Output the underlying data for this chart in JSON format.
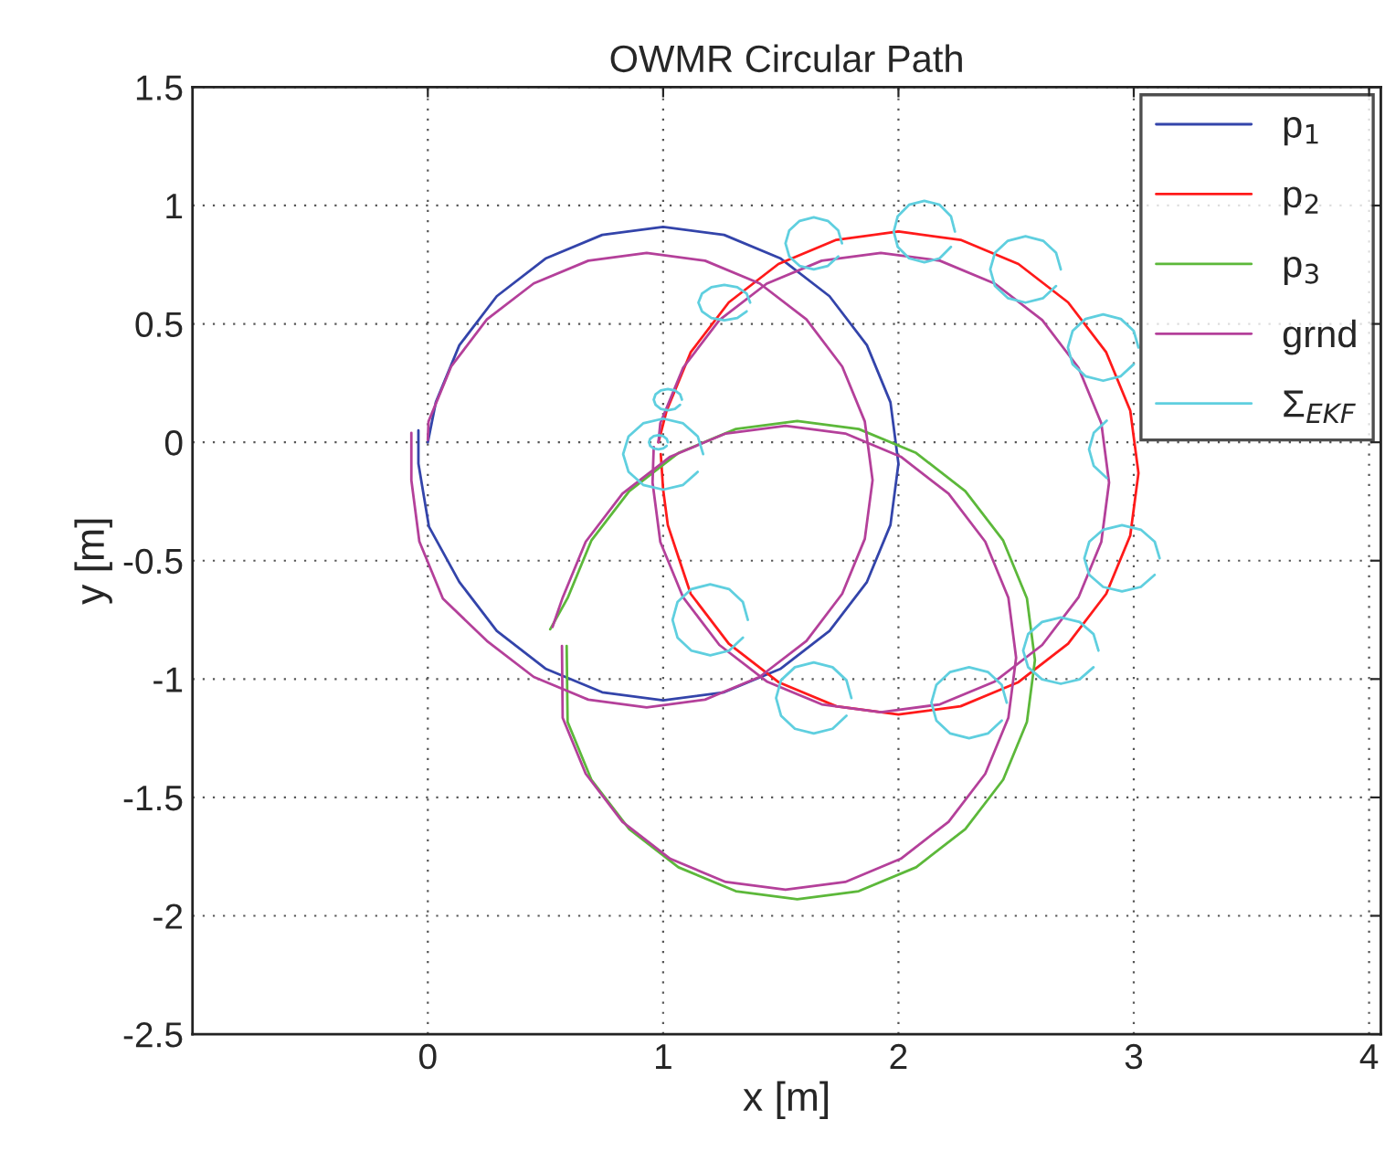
{
  "chart_data": {
    "type": "line",
    "title": "OWMR Circular Path",
    "xlabel": "x [m]",
    "ylabel": "y [m]",
    "xlim": [
      -1,
      4.05
    ],
    "xticks": [
      0,
      1,
      2,
      3,
      4
    ],
    "ylim": [
      -2.5,
      1.5
    ],
    "yticks": [
      -2.5,
      -2,
      -1.5,
      -1,
      -0.5,
      0,
      0.5,
      1,
      1.5
    ],
    "grid": true,
    "legend": "top right",
    "line_style": "solid",
    "marker": "none",
    "series": [
      {
        "name": "p$_{1}$",
        "color": "#3344aa",
        "x": [
          0.0,
          0.034,
          0.134,
          0.293,
          0.5,
          0.741,
          1.0,
          1.259,
          1.5,
          1.707,
          1.866,
          1.966,
          2.0,
          1.966,
          1.866,
          1.707,
          1.5,
          1.259,
          1.0,
          0.741,
          0.5,
          0.293,
          0.134,
          0.005,
          -0.04,
          -0.04
        ],
        "values": [
          0.0,
          0.169,
          0.41,
          0.617,
          0.776,
          0.876,
          0.91,
          0.876,
          0.776,
          0.617,
          0.41,
          0.169,
          -0.09,
          -0.349,
          -0.59,
          -0.797,
          -0.956,
          -1.056,
          -1.09,
          -1.056,
          -0.956,
          -0.797,
          -0.59,
          -0.357,
          -0.09,
          0.05
        ]
      },
      {
        "name": "p$_{2}$",
        "color": "#ff1a1a",
        "x": [
          0.98,
          1.015,
          1.117,
          1.279,
          1.49,
          1.736,
          2.0,
          2.264,
          2.51,
          2.721,
          2.883,
          2.985,
          3.02,
          2.985,
          2.883,
          2.721,
          2.51,
          2.264,
          2.0,
          1.736,
          1.49,
          1.279,
          1.117,
          1.07,
          1.02,
          1.0,
          0.99
        ],
        "values": [
          0.0,
          0.134,
          0.38,
          0.591,
          0.753,
          0.855,
          0.89,
          0.855,
          0.753,
          0.591,
          0.38,
          0.134,
          -0.13,
          -0.394,
          -0.64,
          -0.851,
          -1.013,
          -1.115,
          -1.15,
          -1.115,
          -1.013,
          -0.851,
          -0.64,
          -0.5,
          -0.35,
          -0.2,
          -0.05
        ]
      },
      {
        "name": "p$_{3}$",
        "color": "#5cb83a",
        "x": [
          0.52,
          0.594,
          0.695,
          0.856,
          1.065,
          1.309,
          1.57,
          1.831,
          2.075,
          2.284,
          2.445,
          2.546,
          2.58,
          2.546,
          2.445,
          2.284,
          2.075,
          1.831,
          1.57,
          1.309,
          1.065,
          0.856,
          0.695,
          0.594,
          0.59
        ],
        "values": [
          -0.79,
          -0.658,
          -0.415,
          -0.206,
          -0.045,
          0.056,
          0.09,
          0.056,
          -0.045,
          -0.206,
          -0.415,
          -0.659,
          -0.92,
          -1.181,
          -1.425,
          -1.634,
          -1.795,
          -1.896,
          -1.93,
          -1.896,
          -1.795,
          -1.634,
          -1.425,
          -1.181,
          -0.86
        ]
      },
      {
        "name": "grnd",
        "color": "#b4409a",
        "x": [
          0.0,
          0.003,
          0.099,
          0.251,
          0.45,
          0.682,
          0.93,
          1.178,
          1.41,
          1.609,
          1.761,
          1.857,
          1.89,
          1.857,
          1.761,
          1.609,
          1.41,
          1.178,
          0.93,
          0.682,
          0.45,
          0.251,
          0.064,
          -0.036,
          -0.07,
          -0.07,
          null,
          0.98,
          0.988,
          1.085,
          1.239,
          1.44,
          1.674,
          1.925,
          2.176,
          2.41,
          2.611,
          2.765,
          2.862,
          2.895,
          2.862,
          2.765,
          2.611,
          2.41,
          2.176,
          1.925,
          1.674,
          1.44,
          1.239,
          1.085,
          0.988,
          0.955,
          0.96,
          null,
          0.53,
          0.573,
          0.671,
          0.827,
          1.03,
          1.266,
          1.52,
          1.774,
          2.01,
          2.213,
          2.369,
          2.467,
          2.5,
          2.467,
          2.369,
          2.213,
          2.01,
          1.774,
          1.52,
          1.266,
          1.03,
          0.827,
          0.671,
          0.573,
          0.57
        ],
        "values": [
          0.01,
          0.088,
          0.32,
          0.519,
          0.671,
          0.767,
          0.8,
          0.767,
          0.671,
          0.519,
          0.32,
          0.088,
          -0.16,
          -0.408,
          -0.64,
          -0.839,
          -0.991,
          -1.087,
          -1.12,
          -1.087,
          -0.991,
          -0.839,
          -0.66,
          -0.419,
          -0.16,
          0.04,
          null,
          0.0,
          0.081,
          0.315,
          0.516,
          0.67,
          0.767,
          0.8,
          0.767,
          0.67,
          0.516,
          0.315,
          0.081,
          -0.17,
          -0.421,
          -0.655,
          -0.856,
          -1.01,
          -1.107,
          -1.14,
          -1.107,
          -1.01,
          -0.856,
          -0.655,
          -0.421,
          -0.17,
          -0.02,
          null,
          -0.78,
          -0.656,
          -0.42,
          -0.217,
          -0.061,
          0.037,
          0.07,
          0.037,
          -0.061,
          -0.217,
          -0.42,
          -0.656,
          -0.91,
          -1.164,
          -1.4,
          -1.603,
          -1.759,
          -1.857,
          -1.89,
          -1.857,
          -1.759,
          -1.603,
          -1.4,
          -1.164,
          -0.86
        ]
      },
      {
        "name": "Σ$_{EKF}$",
        "color": "#5fcfdf",
        "x": [
          1.02,
          1.015,
          1.0,
          0.98,
          0.96,
          0.945,
          0.94,
          0.945,
          0.96,
          0.98,
          1.0,
          1.015,
          1.02
        ],
        "values": [
          0.0,
          0.015,
          0.026,
          0.03,
          0.026,
          0.015,
          0.0,
          -0.015,
          -0.026,
          -0.03,
          -0.026,
          -0.015,
          0.0
        ]
      },
      {
        "color": "#5fcfdf",
        "x": [
          1.17,
          1.147,
          1.085,
          1.0,
          0.915,
          0.853,
          0.83,
          0.853,
          0.915,
          1.0,
          1.085,
          1.147,
          1.17
        ],
        "values": [
          -0.05,
          0.025,
          0.08,
          0.1,
          0.08,
          0.025,
          -0.05,
          -0.125,
          -0.18,
          -0.2,
          -0.18,
          -0.125,
          -0.05
        ]
      },
      {
        "color": "#5fcfdf",
        "x": [
          1.08,
          1.072,
          1.05,
          1.02,
          0.99,
          0.968,
          0.96,
          0.968,
          0.99,
          1.02,
          1.05,
          1.072,
          1.08
        ],
        "values": [
          0.18,
          0.203,
          0.219,
          0.225,
          0.219,
          0.203,
          0.18,
          0.158,
          0.141,
          0.135,
          0.141,
          0.158,
          0.18
        ]
      },
      {
        "color": "#5fcfdf",
        "x": [
          1.37,
          1.355,
          1.315,
          1.26,
          1.205,
          1.165,
          1.15,
          1.165,
          1.205,
          1.26,
          1.315,
          1.355,
          1.37
        ],
        "values": [
          0.59,
          0.628,
          0.655,
          0.665,
          0.655,
          0.628,
          0.59,
          0.553,
          0.525,
          0.515,
          0.525,
          0.553,
          0.59
        ]
      },
      {
        "color": "#5fcfdf",
        "x": [
          1.76,
          1.744,
          1.7,
          1.64,
          1.58,
          1.536,
          1.52,
          1.536,
          1.58,
          1.64,
          1.7,
          1.744,
          1.76
        ],
        "values": [
          0.84,
          0.895,
          0.935,
          0.95,
          0.935,
          0.895,
          0.84,
          0.785,
          0.745,
          0.73,
          0.745,
          0.785,
          0.84
        ]
      },
      {
        "color": "#5fcfdf",
        "x": [
          2.24,
          2.223,
          2.175,
          2.11,
          2.045,
          1.997,
          1.98,
          1.997,
          2.045,
          2.11,
          2.175,
          2.223,
          2.24
        ],
        "values": [
          0.89,
          0.955,
          1.003,
          1.02,
          1.003,
          0.955,
          0.89,
          0.825,
          0.777,
          0.76,
          0.777,
          0.825,
          0.89
        ]
      },
      {
        "color": "#5fcfdf",
        "x": [
          2.69,
          2.67,
          2.615,
          2.54,
          2.465,
          2.41,
          2.39,
          2.41,
          2.465,
          2.54,
          2.615,
          2.67,
          2.69
        ],
        "values": [
          0.73,
          0.8,
          0.851,
          0.87,
          0.851,
          0.8,
          0.73,
          0.66,
          0.609,
          0.59,
          0.609,
          0.66,
          0.73
        ]
      },
      {
        "color": "#5fcfdf",
        "x": [
          3.02,
          3.0,
          2.945,
          2.87,
          2.795,
          2.74,
          2.72,
          2.74,
          2.795,
          2.87,
          2.945,
          3.0,
          3.02
        ],
        "values": [
          0.4,
          0.47,
          0.521,
          0.54,
          0.521,
          0.47,
          0.4,
          0.33,
          0.279,
          0.26,
          0.279,
          0.33,
          0.4
        ]
      },
      {
        "color": "#5fcfdf",
        "x": [
          null,
          null,
          null,
          null,
          2.885,
          2.83,
          2.81,
          2.83,
          2.885,
          null,
          null,
          null,
          null
        ],
        "values": [
          null,
          null,
          null,
          null,
          0.091,
          0.04,
          -0.03,
          -0.1,
          -0.151,
          null,
          null,
          null,
          null
        ]
      },
      {
        "color": "#5fcfdf",
        "x": [
          3.11,
          3.089,
          3.03,
          2.95,
          2.87,
          2.811,
          2.79,
          2.811,
          2.87,
          2.95,
          3.03,
          3.089,
          3.11
        ],
        "values": [
          -0.49,
          -0.42,
          -0.369,
          -0.35,
          -0.369,
          -0.42,
          -0.49,
          -0.56,
          -0.611,
          -0.63,
          -0.611,
          -0.56,
          -0.49
        ]
      },
      {
        "color": "#5fcfdf",
        "x": [
          2.85,
          2.829,
          2.77,
          2.69,
          2.61,
          2.551,
          2.53,
          2.551,
          2.61,
          2.69,
          2.77,
          2.829,
          2.85
        ],
        "values": [
          -0.88,
          -0.81,
          -0.759,
          -0.74,
          -0.759,
          -0.81,
          -0.88,
          -0.95,
          -1.001,
          -1.02,
          -1.001,
          -0.95,
          -0.88
        ]
      },
      {
        "color": "#5fcfdf",
        "x": [
          2.46,
          2.439,
          2.38,
          2.3,
          2.22,
          2.161,
          2.14,
          2.161,
          2.22,
          2.3,
          2.38,
          2.439,
          2.46
        ],
        "values": [
          -1.1,
          -1.025,
          -0.97,
          -0.95,
          -0.97,
          -1.025,
          -1.1,
          -1.175,
          -1.23,
          -1.25,
          -1.23,
          -1.175,
          -1.1
        ]
      },
      {
        "color": "#5fcfdf",
        "x": [
          1.8,
          1.779,
          1.72,
          1.64,
          1.56,
          1.501,
          1.48,
          1.501,
          1.56,
          1.64,
          1.72,
          1.779,
          1.8
        ],
        "values": [
          -1.08,
          -1.005,
          -0.95,
          -0.93,
          -0.95,
          -1.005,
          -1.08,
          -1.155,
          -1.21,
          -1.23,
          -1.21,
          -1.155,
          -1.08
        ]
      },
      {
        "color": "#5fcfdf",
        "x": [
          1.36,
          1.339,
          1.28,
          1.2,
          1.12,
          1.061,
          1.04,
          1.061,
          1.12,
          1.2,
          1.28,
          1.339,
          1.36
        ],
        "values": [
          -0.75,
          -0.675,
          -0.62,
          -0.6,
          -0.62,
          -0.675,
          -0.75,
          -0.825,
          -0.88,
          -0.9,
          -0.88,
          -0.825,
          -0.75
        ]
      }
    ]
  }
}
